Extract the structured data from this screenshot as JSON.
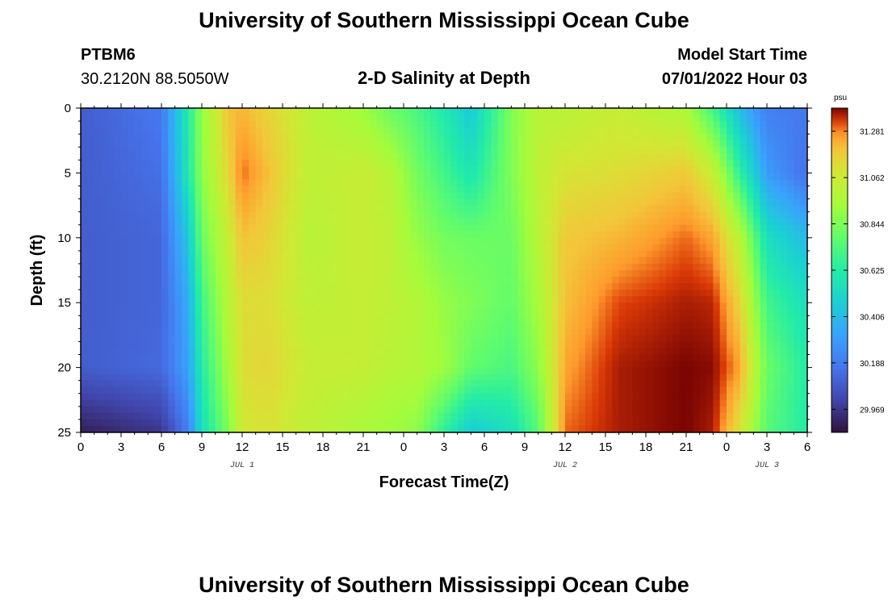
{
  "header": {
    "title": "University of Southern Mississippi Ocean Cube",
    "station_id": "PTBM6",
    "coordinates": "30.2120N  88.5050W",
    "plot_title": "2-D Salinity at Depth",
    "model_label": "Model Start Time",
    "model_time": "07/01/2022 Hour 03"
  },
  "footer": {
    "title": "University of Southern Mississippi Ocean Cube"
  },
  "chart_data": {
    "type": "heatmap",
    "title": "2-D Salinity at Depth",
    "xlabel": "Forecast Time(Z)",
    "ylabel": "Depth (ft)",
    "x_range_hours": [
      0,
      54
    ],
    "x_tick_labels": [
      "0",
      "3",
      "6",
      "9",
      "12",
      "15",
      "18",
      "21",
      "0",
      "3",
      "6",
      "9",
      "12",
      "15",
      "18",
      "21",
      "0",
      "3",
      "6"
    ],
    "date_labels": [
      {
        "text": "JUL 1",
        "hour": 12
      },
      {
        "text": "JUL 2",
        "hour": 36
      },
      {
        "text": "JUL 3",
        "hour": 51
      }
    ],
    "y_range": [
      0,
      25
    ],
    "y_ticks": [
      0,
      5,
      10,
      15,
      20,
      25
    ],
    "colorbar": {
      "unit": "psu",
      "range": [
        29.86,
        31.39
      ],
      "tick_values": [
        29.969,
        30.188,
        30.406,
        30.625,
        30.844,
        31.062,
        31.281
      ],
      "tick_labels": [
        "29.969",
        "30.188",
        "30.406",
        "30.625",
        "30.844",
        "31.062",
        "31.281"
      ]
    },
    "depth_levels_ft": [
      0,
      5,
      10,
      15,
      20,
      25
    ],
    "profiles": [
      {
        "hour": 0,
        "salinity_psu": [
          30.09,
          30.09,
          30.09,
          30.09,
          30.09,
          29.9
        ]
      },
      {
        "hour": 6,
        "salinity_psu": [
          30.18,
          30.15,
          30.12,
          30.12,
          30.13,
          29.97
        ]
      },
      {
        "hour": 8,
        "salinity_psu": [
          30.62,
          30.6,
          30.45,
          30.35,
          30.32,
          30.2
        ]
      },
      {
        "hour": 9,
        "salinity_psu": [
          30.9,
          30.88,
          30.8,
          30.7,
          30.62,
          30.55
        ]
      },
      {
        "hour": 11,
        "salinity_psu": [
          31.2,
          31.15,
          31.05,
          31.0,
          30.95,
          30.85
        ]
      },
      {
        "hour": 12,
        "salinity_psu": [
          31.22,
          31.3,
          31.2,
          31.12,
          31.12,
          31.08
        ]
      },
      {
        "hour": 14,
        "salinity_psu": [
          31.15,
          31.2,
          31.15,
          31.12,
          31.14,
          31.1
        ]
      },
      {
        "hour": 17,
        "salinity_psu": [
          31.02,
          31.02,
          31.0,
          31.02,
          31.05,
          31.02
        ]
      },
      {
        "hour": 21,
        "salinity_psu": [
          30.92,
          31.05,
          31.05,
          31.04,
          31.04,
          30.95
        ]
      },
      {
        "hour": 23,
        "salinity_psu": [
          30.8,
          31.0,
          31.02,
          31.02,
          31.0,
          30.92
        ]
      },
      {
        "hour": 25,
        "salinity_psu": [
          30.72,
          30.82,
          30.9,
          30.98,
          30.98,
          30.88
        ]
      },
      {
        "hour": 27,
        "salinity_psu": [
          30.6,
          30.7,
          30.82,
          30.9,
          30.92,
          30.65
        ]
      },
      {
        "hour": 29,
        "salinity_psu": [
          30.45,
          30.58,
          30.8,
          30.85,
          30.78,
          30.45
        ]
      },
      {
        "hour": 32,
        "salinity_psu": [
          30.85,
          30.85,
          30.8,
          30.78,
          30.72,
          30.55
        ]
      },
      {
        "hour": 34,
        "salinity_psu": [
          31.0,
          31.02,
          31.0,
          30.95,
          30.88,
          30.75
        ]
      },
      {
        "hour": 36,
        "salinity_psu": [
          31.0,
          31.1,
          31.18,
          31.2,
          31.25,
          31.3
        ]
      },
      {
        "hour": 40,
        "salinity_psu": [
          31.05,
          31.12,
          31.22,
          31.32,
          31.36,
          31.36
        ]
      },
      {
        "hour": 45,
        "salinity_psu": [
          30.95,
          31.18,
          31.3,
          31.36,
          31.39,
          31.39
        ]
      },
      {
        "hour": 47,
        "salinity_psu": [
          30.7,
          31.05,
          31.25,
          31.35,
          31.38,
          31.36
        ]
      },
      {
        "hour": 49,
        "salinity_psu": [
          30.4,
          30.65,
          31.0,
          31.15,
          31.25,
          31.1
        ]
      },
      {
        "hour": 51,
        "salinity_psu": [
          30.2,
          30.3,
          30.55,
          30.7,
          30.8,
          30.75
        ]
      },
      {
        "hour": 54,
        "salinity_psu": [
          30.18,
          30.15,
          30.4,
          30.55,
          30.62,
          30.62
        ]
      }
    ]
  }
}
